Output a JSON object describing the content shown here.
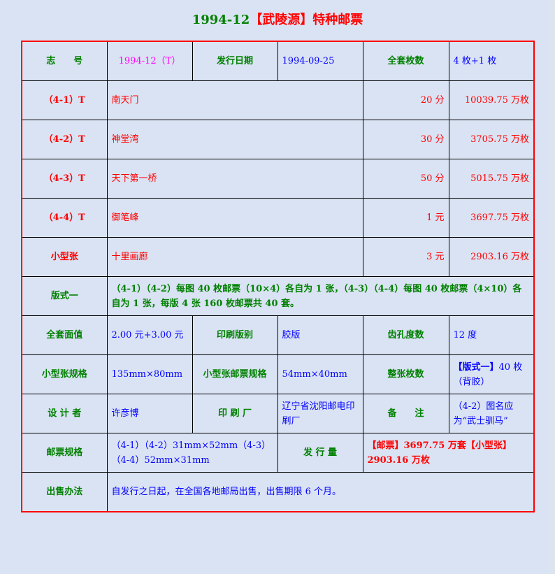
{
  "title": {
    "code": "1994-12",
    "name": "【武陵源】特种邮票"
  },
  "header": {
    "l1": "志　　号",
    "v1": "1994-12（T）",
    "l2": "发行日期",
    "v2": "1994-09-25",
    "l3": "全套枚数",
    "v3": "4 枚+1 枚"
  },
  "stamps": [
    {
      "id": "（4-1）T",
      "name": "南天门",
      "value": "20 分",
      "qty": "10039.75 万枚"
    },
    {
      "id": "（4-2）T",
      "name": "神堂湾",
      "value": "30 分",
      "qty": "3705.75 万枚"
    },
    {
      "id": "（4-3）T",
      "name": "天下第一桥",
      "value": "50 分",
      "qty": "5015.75 万枚"
    },
    {
      "id": "（4-4）T",
      "name": "御笔峰",
      "value": "1 元",
      "qty": "3697.75 万枚"
    },
    {
      "id": "小型张",
      "name": "十里画廊",
      "value": "3 元",
      "qty": "2903.16 万枚"
    }
  ],
  "format": {
    "label": "版式一",
    "text": "（4-1）（4-2）每图 40 枚邮票（10×4）各自为 1 张，（4-3）（4-4）每图 40 枚邮票（4×10）各自为 1 张，每版 4 张 160 枚邮票共 40 套。"
  },
  "row_face": {
    "l1": "全套面值",
    "v1": "2.00 元+3.00 元",
    "l2": "印刷版别",
    "v2": "胶版",
    "l3": "齿孔度数",
    "v3": "12 度"
  },
  "row_size": {
    "l1": "小型张规格",
    "v1": "135mm×80mm",
    "l2": "小型张邮票规格",
    "v2": "54mm×40mm",
    "l3": "整张枚数",
    "v3a": "【版式一】",
    "v3b": "40 枚（背胶）"
  },
  "row_design": {
    "l1": "设 计 者",
    "v1": "许彦博",
    "l2": "印 刷 厂",
    "v2": "辽宁省沈阳邮电印刷厂",
    "l3": "备　　注",
    "v3": "（4-2）图名应为“武士驯马”"
  },
  "row_spec": {
    "l1": "邮票规格",
    "v1": "（4-1）（4-2）31mm×52mm（4-3）（4-4）52mm×31mm",
    "l2": "发 行 量",
    "v2": "【邮票】3697.75 万套【小型张】2903.16 万枚"
  },
  "row_sale": {
    "l1": "出售办法",
    "v1": "自发行之日起，在全国各地邮局出售，出售期限 6 个月。"
  }
}
